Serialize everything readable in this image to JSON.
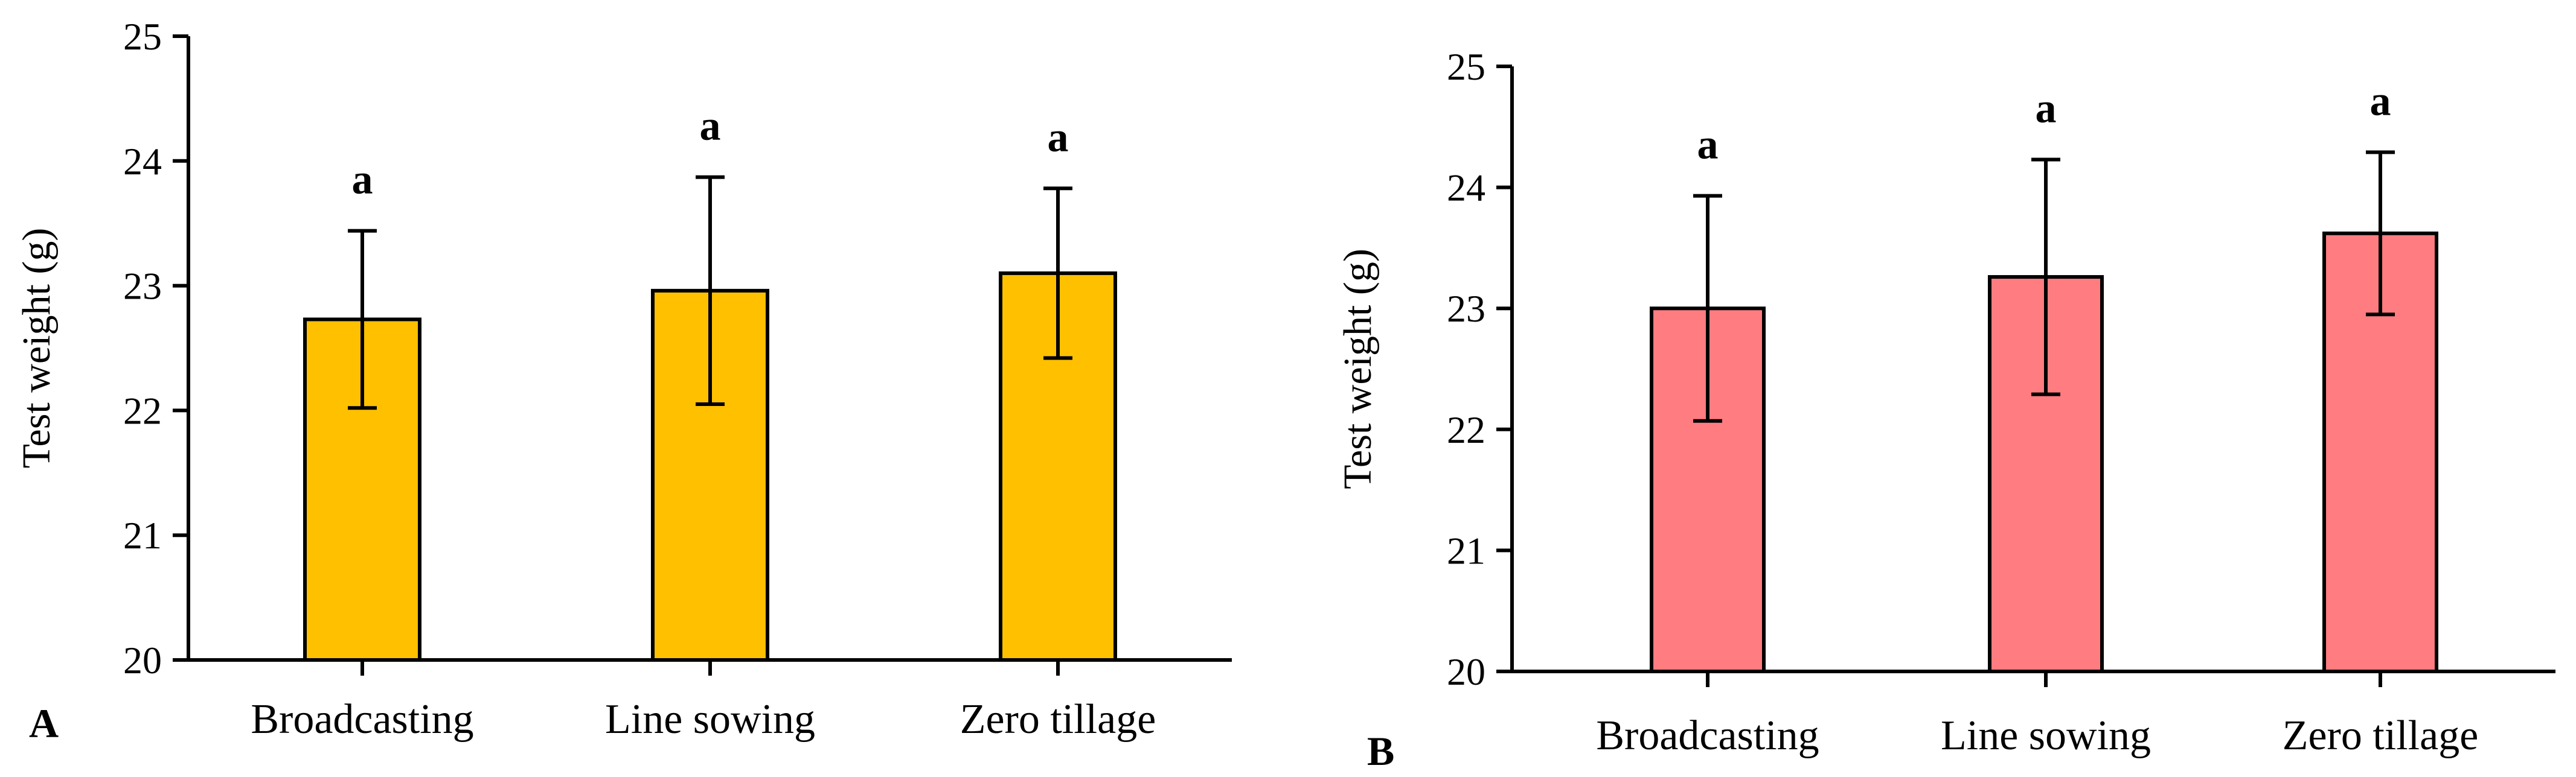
{
  "chart_data": [
    {
      "type": "bar",
      "panel_label": "A",
      "categories": [
        "Broadcasting",
        "Line sowing",
        "Zero tillage"
      ],
      "values": [
        22.73,
        22.96,
        23.1
      ],
      "error": [
        0.71,
        0.91,
        0.68
      ],
      "significance": [
        "a",
        "a",
        "a"
      ],
      "ylabel": "Test weight (g)",
      "xlabel": "",
      "ylim": [
        20,
        25
      ],
      "yticks": [
        "20",
        "21",
        "22",
        "23",
        "24",
        "25"
      ],
      "grid": false,
      "color": "#FFC000"
    },
    {
      "type": "bar",
      "panel_label": "B",
      "categories": [
        "Broadcasting",
        "Line sowing",
        "Zero tillage"
      ],
      "values": [
        23.0,
        23.26,
        23.62
      ],
      "error": [
        0.93,
        0.97,
        0.67
      ],
      "significance": [
        "a",
        "a",
        "a"
      ],
      "ylabel": "Test weight (g)",
      "xlabel": "",
      "ylim": [
        20,
        25
      ],
      "yticks": [
        "20",
        "21",
        "22",
        "23",
        "24",
        "25"
      ],
      "grid": false,
      "color": "#FF7C80"
    }
  ]
}
